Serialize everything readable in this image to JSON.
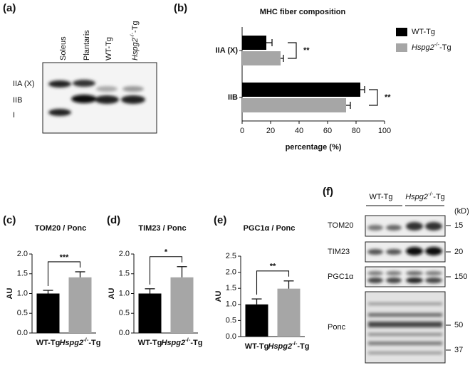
{
  "gel_a": {
    "panel": "(a)",
    "lanes": [
      "Soleus",
      "Plantaris",
      "WT-Tg",
      "Hspg2-/--Tg"
    ],
    "bands": [
      "IIA (X)",
      "IIB",
      "I"
    ]
  },
  "blot_f": {
    "panel": "(f)",
    "groups": [
      "WT-Tg",
      "Hspg2-/--Tg"
    ],
    "unit": "(kD)",
    "rows": [
      {
        "label": "TOM20",
        "kd": [
          15
        ]
      },
      {
        "label": "TIM23",
        "kd": [
          20
        ]
      },
      {
        "label": "PGC1α",
        "kd": [
          150
        ]
      },
      {
        "label": "Ponc",
        "kd": [
          50,
          37
        ]
      }
    ]
  },
  "chart_data": [
    {
      "type": "barh",
      "panel": "(b)",
      "title": "MHC fiber composition",
      "xlabel": "percentage (%)",
      "categories": [
        "IIA (X)",
        "IIB"
      ],
      "series": [
        {
          "name": "WT-Tg",
          "color": "#000000",
          "values": [
            17,
            83
          ],
          "errors": [
            4,
            3
          ]
        },
        {
          "name": "Hspg2-/--Tg",
          "color": "#a6a6a6",
          "values": [
            27,
            73
          ],
          "errors": [
            2,
            3
          ]
        }
      ],
      "annotations": [
        "**",
        "**"
      ],
      "xlim": [
        0,
        100
      ],
      "xticks": [
        0,
        20,
        40,
        60,
        80,
        100
      ],
      "legend": "right"
    },
    {
      "type": "bar",
      "panel": "(c)",
      "title": "TOM20 / Ponc",
      "ylabel": "AU",
      "categories": [
        "WT-Tg",
        "Hspg2-/--Tg"
      ],
      "values": [
        1.0,
        1.41
      ],
      "errors": [
        0.08,
        0.14
      ],
      "colors": [
        "#000000",
        "#a6a6a6"
      ],
      "annotation": "***",
      "ylim": [
        0,
        2
      ],
      "yticks": [
        {
          "value": 0,
          "label": "0.0"
        },
        0.5,
        {
          "value": 1,
          "label": "1.0"
        },
        1.5,
        {
          "value": 2,
          "label": "2.0"
        }
      ]
    },
    {
      "type": "bar",
      "panel": "(d)",
      "title": "TIM23 / Ponc",
      "ylabel": "AU",
      "categories": [
        "WT-Tg",
        "Hspg2-/--Tg"
      ],
      "values": [
        1.0,
        1.41
      ],
      "errors": [
        0.12,
        0.27
      ],
      "colors": [
        "#000000",
        "#a6a6a6"
      ],
      "annotation": "*",
      "ylim": [
        0,
        2
      ],
      "yticks": [
        {
          "value": 0,
          "label": "0.0"
        },
        0.5,
        {
          "value": 1,
          "label": "1.0"
        },
        1.5,
        {
          "value": 2,
          "label": "2.0"
        }
      ]
    },
    {
      "type": "bar",
      "panel": "(e)",
      "title": "PGC1α / Ponc",
      "ylabel": "AU",
      "categories": [
        "WT-Tg",
        "Hspg2-/--Tg"
      ],
      "values": [
        1.0,
        1.49
      ],
      "errors": [
        0.17,
        0.24
      ],
      "colors": [
        "#000000",
        "#a6a6a6"
      ],
      "annotation": "**",
      "ylim": [
        0,
        2.5
      ],
      "yticks": [
        {
          "value": 0,
          "label": "0.0"
        },
        0.5,
        {
          "value": 1,
          "label": "1.0"
        },
        1.5,
        {
          "value": 2,
          "label": "2.0"
        },
        2.5
      ]
    }
  ]
}
